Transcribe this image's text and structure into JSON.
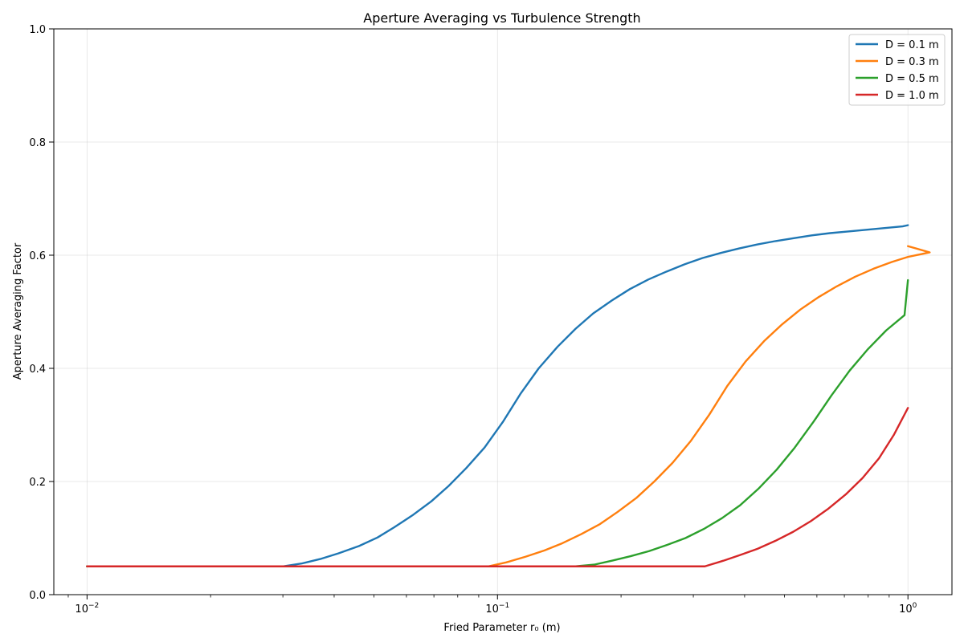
{
  "chart_data": {
    "type": "line",
    "title": "Aperture Averaging vs Turbulence Strength",
    "xlabel": "Fried Parameter r₀ (m)",
    "ylabel": "Aperture Averaging Factor",
    "xscale": "log",
    "xlim": [
      0.0083,
      1.28
    ],
    "ylim": [
      0.0,
      1.0
    ],
    "xticks": [
      {
        "value": 0.01,
        "base": "10",
        "exp": "−2"
      },
      {
        "value": 0.1,
        "base": "10",
        "exp": "−1"
      },
      {
        "value": 1.0,
        "base": "10",
        "exp": "0"
      }
    ],
    "yticks": [
      {
        "value": 0.0,
        "label": "0.0"
      },
      {
        "value": 0.2,
        "label": "0.2"
      },
      {
        "value": 0.4,
        "label": "0.4"
      },
      {
        "value": 0.6,
        "label": "0.6"
      },
      {
        "value": 0.8,
        "label": "0.8"
      },
      {
        "value": 1.0,
        "label": "1.0"
      }
    ],
    "grid": true,
    "legend_position": "top-right",
    "series": [
      {
        "name": "D = 0.1 m",
        "color": "#1f77b4",
        "points": [
          [
            0.01,
            0.05
          ],
          [
            0.03,
            0.05
          ],
          [
            0.0333,
            0.055
          ],
          [
            0.037,
            0.063
          ],
          [
            0.041,
            0.073
          ],
          [
            0.046,
            0.086
          ],
          [
            0.051,
            0.101
          ],
          [
            0.056,
            0.119
          ],
          [
            0.062,
            0.14
          ],
          [
            0.069,
            0.165
          ],
          [
            0.076,
            0.192
          ],
          [
            0.084,
            0.224
          ],
          [
            0.093,
            0.26
          ],
          [
            0.103,
            0.305
          ],
          [
            0.114,
            0.356
          ],
          [
            0.126,
            0.4
          ],
          [
            0.14,
            0.438
          ],
          [
            0.155,
            0.47
          ],
          [
            0.171,
            0.497
          ],
          [
            0.19,
            0.52
          ],
          [
            0.21,
            0.54
          ],
          [
            0.233,
            0.557
          ],
          [
            0.258,
            0.571
          ],
          [
            0.286,
            0.584
          ],
          [
            0.316,
            0.595
          ],
          [
            0.35,
            0.604
          ],
          [
            0.388,
            0.612
          ],
          [
            0.43,
            0.619
          ],
          [
            0.476,
            0.625
          ],
          [
            0.527,
            0.63
          ],
          [
            0.583,
            0.635
          ],
          [
            0.646,
            0.639
          ],
          [
            0.715,
            0.642
          ],
          [
            0.792,
            0.645
          ],
          [
            0.877,
            0.648
          ],
          [
            0.971,
            0.651
          ],
          [
            1.0,
            0.653
          ]
        ]
      },
      {
        "name": "D = 0.3 m",
        "color": "#ff7f0e",
        "points": [
          [
            0.01,
            0.05
          ],
          [
            0.095,
            0.05
          ],
          [
            0.105,
            0.057
          ],
          [
            0.117,
            0.067
          ],
          [
            0.13,
            0.078
          ],
          [
            0.144,
            0.091
          ],
          [
            0.16,
            0.107
          ],
          [
            0.177,
            0.124
          ],
          [
            0.196,
            0.146
          ],
          [
            0.218,
            0.171
          ],
          [
            0.241,
            0.2
          ],
          [
            0.267,
            0.233
          ],
          [
            0.296,
            0.272
          ],
          [
            0.328,
            0.318
          ],
          [
            0.363,
            0.369
          ],
          [
            0.402,
            0.412
          ],
          [
            0.446,
            0.448
          ],
          [
            0.494,
            0.478
          ],
          [
            0.547,
            0.504
          ],
          [
            0.606,
            0.526
          ],
          [
            0.671,
            0.545
          ],
          [
            0.744,
            0.562
          ],
          [
            0.824,
            0.576
          ],
          [
            0.913,
            0.588
          ],
          [
            1.0,
            0.597
          ],
          [
            1.13,
            0.605
          ],
          [
            1.0,
            0.616
          ]
        ]
      },
      {
        "name": "D = 0.5 m",
        "color": "#2ca02c",
        "points": [
          [
            0.01,
            0.05
          ],
          [
            0.155,
            0.05
          ],
          [
            0.172,
            0.053
          ],
          [
            0.19,
            0.06
          ],
          [
            0.211,
            0.068
          ],
          [
            0.234,
            0.077
          ],
          [
            0.259,
            0.088
          ],
          [
            0.287,
            0.1
          ],
          [
            0.318,
            0.116
          ],
          [
            0.352,
            0.135
          ],
          [
            0.39,
            0.158
          ],
          [
            0.432,
            0.187
          ],
          [
            0.479,
            0.221
          ],
          [
            0.53,
            0.26
          ],
          [
            0.588,
            0.305
          ],
          [
            0.651,
            0.352
          ],
          [
            0.721,
            0.396
          ],
          [
            0.799,
            0.434
          ],
          [
            0.885,
            0.467
          ],
          [
            0.981,
            0.494
          ],
          [
            1.0,
            0.556
          ]
        ]
      },
      {
        "name": "D = 1.0 m",
        "color": "#d62728",
        "points": [
          [
            0.01,
            0.05
          ],
          [
            0.32,
            0.05
          ],
          [
            0.355,
            0.06
          ],
          [
            0.39,
            0.07
          ],
          [
            0.43,
            0.081
          ],
          [
            0.475,
            0.095
          ],
          [
            0.525,
            0.111
          ],
          [
            0.58,
            0.13
          ],
          [
            0.64,
            0.152
          ],
          [
            0.705,
            0.177
          ],
          [
            0.775,
            0.206
          ],
          [
            0.85,
            0.241
          ],
          [
            0.925,
            0.283
          ],
          [
            1.0,
            0.33
          ]
        ]
      }
    ]
  }
}
